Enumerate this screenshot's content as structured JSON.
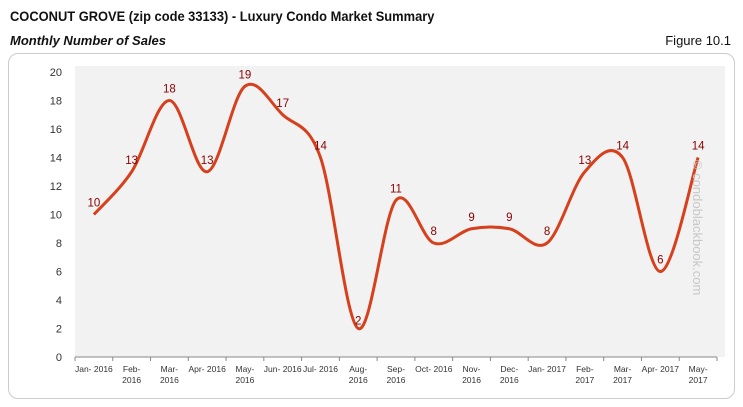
{
  "header": {
    "title": "COCONUT GROVE (zip code 33133) - Luxury Condo Market Summary",
    "subtitle": "Monthly Number of Sales",
    "figure": "Figure 10.1",
    "watermark": "© condoblackbook.com"
  },
  "chart_data": {
    "type": "line",
    "title": "",
    "categories": [
      [
        "Jan- 2016"
      ],
      [
        "Feb-",
        "2016"
      ],
      [
        "Mar-",
        "2016"
      ],
      [
        "Apr- 2016"
      ],
      [
        "May-",
        "2016"
      ],
      [
        "Jun- 2016"
      ],
      [
        "Jul- 2016"
      ],
      [
        "Aug-",
        "2016"
      ],
      [
        "Sep-",
        "2016"
      ],
      [
        "Oct- 2016"
      ],
      [
        "Nov-",
        "2016"
      ],
      [
        "Dec-",
        "2016"
      ],
      [
        "Jan- 2017"
      ],
      [
        "Feb-",
        "2017"
      ],
      [
        "Mar-",
        "2017"
      ],
      [
        "Apr- 2017"
      ],
      [
        "May-",
        "2017"
      ]
    ],
    "values": [
      10,
      13,
      18,
      13,
      19,
      17,
      14,
      2,
      11,
      8,
      9,
      9,
      8,
      13,
      14,
      6,
      14
    ],
    "ylim": [
      0,
      20
    ],
    "yticks": [
      0,
      2,
      4,
      6,
      8,
      10,
      12,
      14,
      16,
      18,
      20
    ],
    "grid": false,
    "smooth": true,
    "colors": {
      "line": "#d6401c",
      "label": "#8b0000",
      "plot_bg": "#f2f2f2"
    }
  }
}
